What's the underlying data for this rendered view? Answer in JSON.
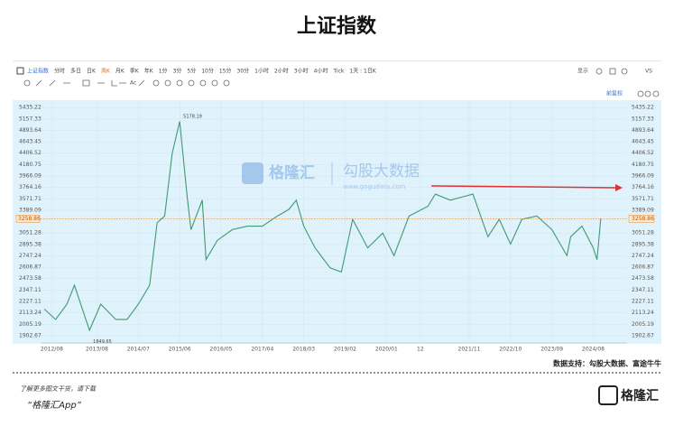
{
  "header": {
    "title": "上证指数"
  },
  "toolbar": {
    "items": [
      "上证指数",
      "分时",
      "多日",
      "日K",
      "周K",
      "月K",
      "季K",
      "年K",
      "1分",
      "3分",
      "5分",
      "10分",
      "15分",
      "30分",
      "1小时",
      "2小时",
      "3小时",
      "4小时",
      "Tick",
      "1天 : 1日K"
    ],
    "right": [
      "显示",
      "VS"
    ],
    "draw_tools": [
      "Ac"
    ],
    "adjust": "前复权"
  },
  "watermark": {
    "brand": "格隆汇",
    "name": "勾股大数据",
    "url": "www.gogudata.com"
  },
  "chart_data": {
    "type": "line",
    "title": "上证指数",
    "color": "#3f9a72",
    "log_scale": true,
    "x": [
      "2012/06",
      "2012/09",
      "2012/12",
      "2013/02",
      "2013/06",
      "2013/09",
      "2014/01",
      "2014/04",
      "2014/07",
      "2014/10",
      "2014/12",
      "2015/02",
      "2015/04",
      "2015/06",
      "2015/08",
      "2015/09",
      "2015/12",
      "2016/01",
      "2016/04",
      "2016/08",
      "2016/12",
      "2017/04",
      "2017/08",
      "2017/11",
      "2018/01",
      "2018/03",
      "2018/06",
      "2018/10",
      "2019/01",
      "2019/04",
      "2019/08",
      "2019/12",
      "2020/03",
      "2020/07",
      "2020/12",
      "2021/02",
      "2021/06",
      "2021/09",
      "2021/12",
      "2022/04",
      "2022/07",
      "2022/10",
      "2023/01",
      "2023/05",
      "2023/09",
      "2024/01",
      "2024/02",
      "2024/05",
      "2024/08",
      "2024/09",
      "2024/10"
    ],
    "values": [
      2150,
      2050,
      2200,
      2400,
      1950,
      2200,
      2050,
      2050,
      2200,
      2400,
      3200,
      3300,
      4400,
      5100,
      3600,
      3100,
      3550,
      2700,
      2950,
      3100,
      3150,
      3150,
      3300,
      3400,
      3550,
      3150,
      2850,
      2600,
      2550,
      3250,
      2850,
      3050,
      2750,
      3300,
      3450,
      3650,
      3550,
      3600,
      3650,
      3000,
      3250,
      2900,
      3250,
      3300,
      3100,
      2750,
      3000,
      3150,
      2850,
      2700,
      3258.86
    ],
    "xlim": [
      "2012/05",
      "2025/05"
    ],
    "xticks": [
      "2012/08",
      "2013/08",
      "2014/07",
      "2015/06",
      "2016/05",
      "2017/04",
      "2018/03",
      "2019/02",
      "2020/01",
      {
        "value": "2020/10",
        "label": "12"
      },
      "2021/11",
      "2022/10",
      "2023/09",
      "2024/08"
    ],
    "ylim": [
      1840,
      5600
    ],
    "yticks": [
      5435.22,
      5157.33,
      4893.64,
      4643.45,
      4406.52,
      4180.75,
      3966.09,
      3764.16,
      3571.71,
      3389.09,
      3051.28,
      2895.38,
      2747.24,
      2606.87,
      2473.58,
      2347.11,
      2227.11,
      2113.24,
      2005.19,
      1902.67
    ],
    "grid": true,
    "current_price": 3258.86,
    "current_color": "#f08a24",
    "annotations": [
      {
        "x": "2015/06",
        "value": 5178.19
      },
      {
        "x": "2013/06",
        "value": 1849.65
      }
    ]
  },
  "source": "数据支持：勾股大数据、富途牛牛",
  "footer": {
    "prompt": "了解更多图文干货，请下载",
    "app": "“格隆汇App”",
    "logo": "格隆汇"
  }
}
